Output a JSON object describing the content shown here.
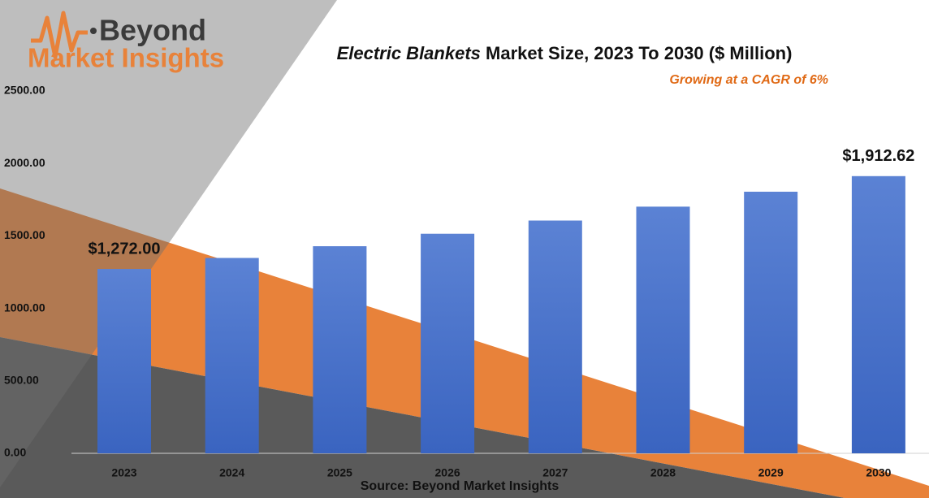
{
  "logo": {
    "line1": "Beyond",
    "line2": "Market Insights"
  },
  "chart_data": {
    "type": "bar",
    "title_emphasis": "Electric Blankets",
    "title": "Market Size, 2023 To 2030 ($ Million)",
    "subtitle": "Growing at a CAGR of 6%",
    "source": "Source: Beyond Market Insights",
    "categories": [
      "2023",
      "2024",
      "2025",
      "2026",
      "2027",
      "2028",
      "2029",
      "2030"
    ],
    "values": [
      1272.0,
      1348,
      1429,
      1515,
      1606,
      1702,
      1805,
      1912.62
    ],
    "value_labels": [
      "$1,272.00",
      null,
      null,
      null,
      null,
      null,
      null,
      "$1,912.62"
    ],
    "color": "#4a74cc",
    "ylim": [
      0,
      2500
    ],
    "yticks": [
      {
        "value": 0,
        "label": "0.00"
      },
      {
        "value": 500,
        "label": "500.00"
      },
      {
        "value": 1000,
        "label": "1000.00"
      },
      {
        "value": 1500,
        "label": "1500.00"
      },
      {
        "value": 2000,
        "label": "2000.00"
      },
      {
        "value": 2500,
        "label": "2500.00"
      }
    ]
  }
}
